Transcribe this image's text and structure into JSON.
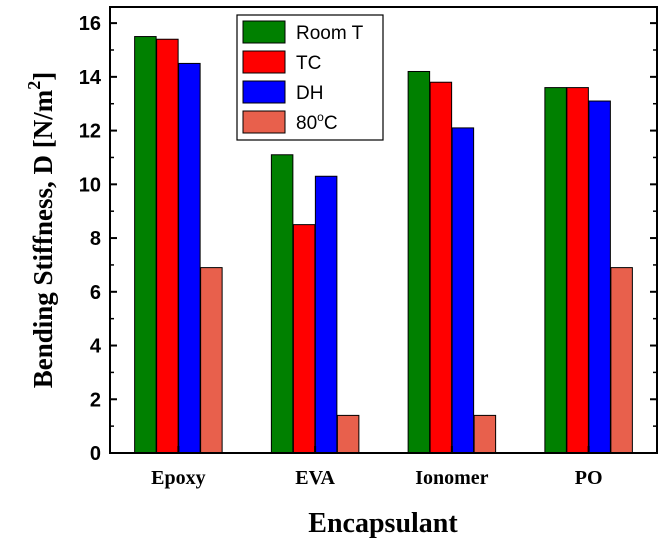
{
  "chart_data": {
    "type": "bar",
    "categories": [
      "Epoxy",
      "EVA",
      "Ionomer",
      "PO"
    ],
    "series": [
      {
        "name": "Room T",
        "color": "#008000",
        "values": [
          15.5,
          11.1,
          14.2,
          13.6
        ]
      },
      {
        "name": "TC",
        "color": "#ff0000",
        "values": [
          15.4,
          8.5,
          13.8,
          13.6
        ]
      },
      {
        "name": "DH",
        "color": "#0000ff",
        "values": [
          14.5,
          10.3,
          12.1,
          13.1
        ]
      },
      {
        "name": "80°C",
        "name_base": "80",
        "name_sup": "o",
        "name_rest": "C",
        "color": "#e8604c",
        "values": [
          6.9,
          1.4,
          1.4,
          6.9
        ]
      }
    ],
    "xlabel": "Encapsulant",
    "ylabel_main": "Bending Stiffness, D [N/m",
    "ylabel_sup": "2",
    "ylabel_end": "]",
    "ylim": [
      0,
      16.6
    ],
    "yticks": [
      0,
      2,
      4,
      6,
      8,
      10,
      12,
      14,
      16
    ],
    "grid": false,
    "legend_position": "top-center"
  }
}
